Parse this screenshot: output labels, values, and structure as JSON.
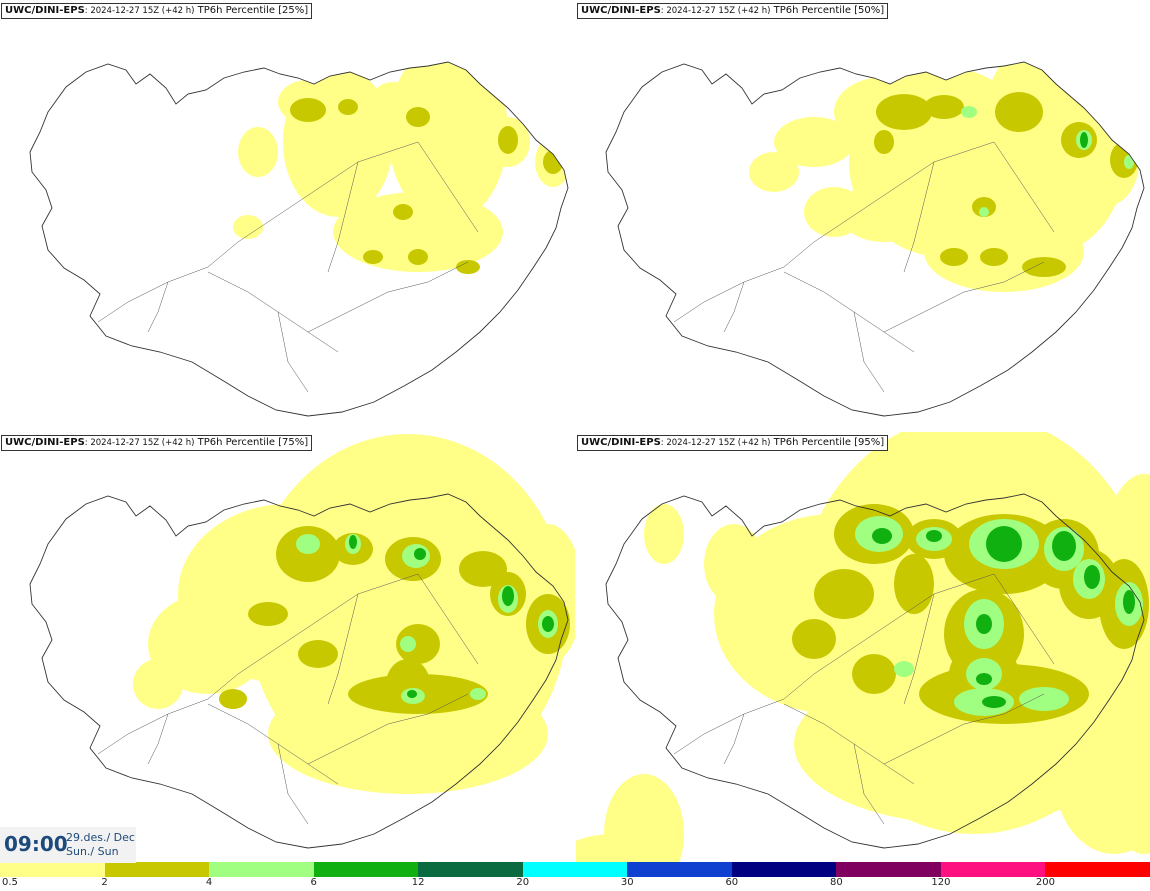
{
  "panels": [
    {
      "model": "UWC/DINI-EPS",
      "run_info": ": 2024-12-27 15Z (+42 h)",
      "product": " TP6h Percentile [25%]",
      "level": 1
    },
    {
      "model": "UWC/DINI-EPS",
      "run_info": ": 2024-12-27 15Z (+42 h)",
      "product": " TP6h Percentile [50%]",
      "level": 2
    },
    {
      "model": "UWC/DINI-EPS",
      "run_info": ": 2024-12-27 15Z (+42 h)",
      "product": " TP6h Percentile [75%]",
      "level": 3
    },
    {
      "model": "UWC/DINI-EPS",
      "run_info": ": 2024-12-27 15Z (+42 h)",
      "product": " TP6h Percentile [95%]",
      "level": 4
    }
  ],
  "valid_time": {
    "time": "09:00",
    "date_line1": "29.des./ Dec",
    "date_line2": "Sun./ Sun"
  },
  "legend": {
    "colors": [
      "#ffff88",
      "#c8c800",
      "#a0ff80",
      "#10b010",
      "#0a6a40",
      "#00ffff",
      "#1040d0",
      "#000080",
      "#800060",
      "#ff1080",
      "#ff0000"
    ],
    "ticks": [
      "0.5",
      "2",
      "4",
      "6",
      "12",
      "20",
      "30",
      "60",
      "80",
      "120",
      "200"
    ]
  }
}
